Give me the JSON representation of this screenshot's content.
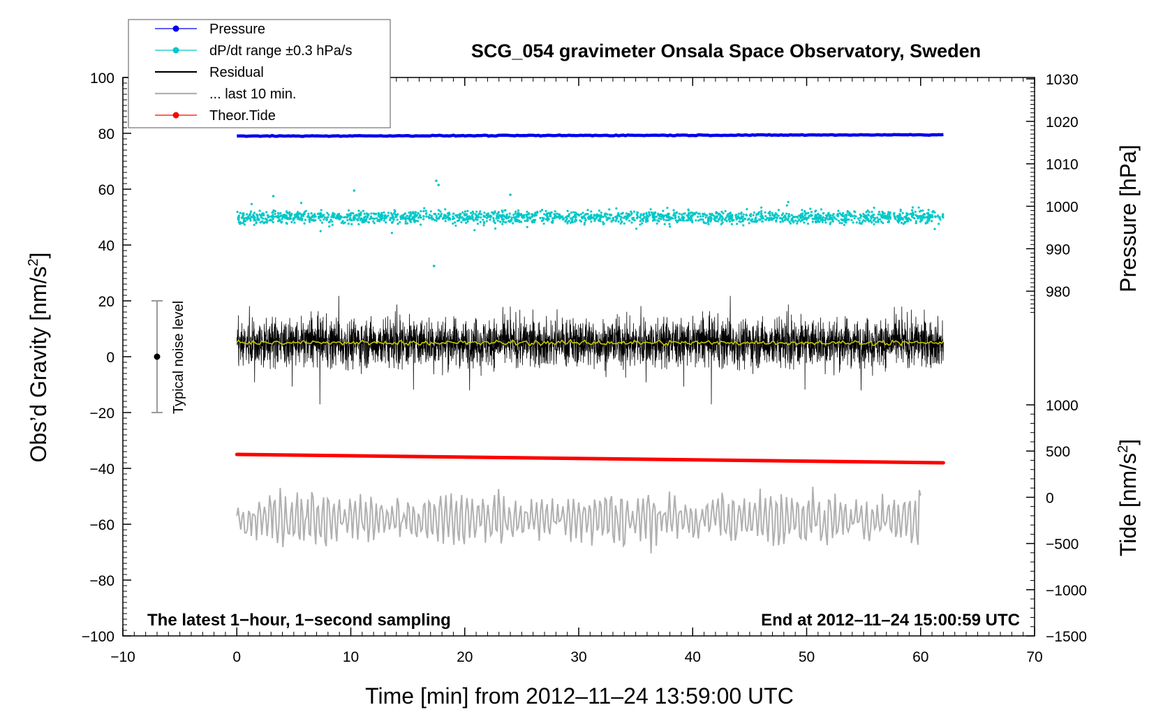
{
  "chart_data": {
    "type": "line",
    "title": "SCG_054 gravimeter Onsala Space Observatory, Sweden",
    "xlabel": "Time [min] from 2012–11–24 13:59:00 UTC",
    "ylabel_left": "Obs’d Gravity [nm/s²]",
    "ylabel_left_main": "Obs’d Gravity [nm/s",
    "ylabel_left_sup": "2",
    "ylabel_left_end": "]",
    "ylabel_right_pressure": "Pressure [hPa]",
    "ylabel_right_tide_main": "Tide [nm/s",
    "ylabel_right_tide_sup": "2",
    "ylabel_right_tide_end": "]",
    "xlim": [
      -10,
      70
    ],
    "ylim": [
      -100,
      100
    ],
    "xticks": [
      "−10",
      "0",
      "10",
      "20",
      "30",
      "40",
      "50",
      "60",
      "70"
    ],
    "yticks_left": [
      "100",
      "80",
      "60",
      "40",
      "20",
      "0",
      "−20",
      "−40",
      "−60",
      "−80",
      "−100"
    ],
    "yticks_pressure": [
      "1030",
      "1020",
      "1010",
      "1000",
      "990",
      "980"
    ],
    "yticks_tide": [
      "1000",
      "500",
      "0",
      "−500",
      "−1000",
      "−1500"
    ],
    "annotation_left": "The latest 1−hour, 1−second sampling",
    "annotation_right": "End at 2012–11–24 15:00:59 UTC",
    "noise_label": "Typical noise level",
    "noise_bar": {
      "x": -7,
      "center": 0,
      "half_range": 20
    },
    "legend": [
      {
        "label": "Pressure",
        "color": "#0000ee",
        "marker": true
      },
      {
        "label": "dP/dt range ±0.3 hPa/s",
        "color": "#00c8c8",
        "marker": true
      },
      {
        "label": "Residual",
        "color": "#000000",
        "marker": false
      },
      {
        "label": "... last 10 min.",
        "color": "#b0b0b0",
        "marker": false
      },
      {
        "label": "Theor.Tide",
        "color": "#ff0000",
        "marker": true
      }
    ],
    "series": [
      {
        "name": "Pressure",
        "x_range": [
          0,
          62
        ],
        "y_start": 79,
        "y_end": 79.5,
        "color": "#0000ee"
      },
      {
        "name": "dP/dt range ±0.3 hPa/s",
        "x_range": [
          0,
          62
        ],
        "y_center": 50,
        "spread": 2.5,
        "color": "#00c8c8"
      },
      {
        "name": "Residual",
        "x_range": [
          0,
          62
        ],
        "y_center": 5,
        "amplitude": 14,
        "color": "#000000"
      },
      {
        "name": "... last 10 min.",
        "x_range": [
          0,
          60
        ],
        "y_center": -58,
        "amplitude": 12,
        "color": "#b0b0b0"
      },
      {
        "name": "Theor.Tide",
        "x_range": [
          0,
          62
        ],
        "y_start": -35,
        "y_end": -38,
        "color": "#ff0000"
      }
    ],
    "smoothed_color": "#c8c800",
    "grid": false,
    "legend_position": "top-left"
  }
}
